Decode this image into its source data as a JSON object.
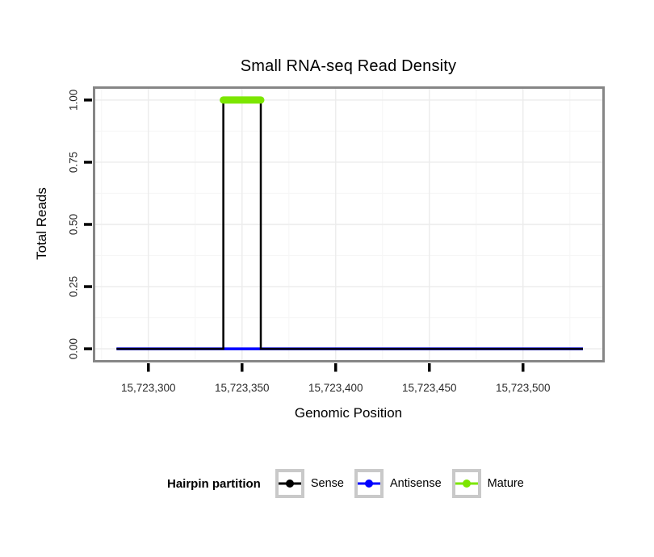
{
  "chart_data": {
    "type": "line",
    "title": "Small RNA-seq Read Density",
    "xlabel": "Genomic Position",
    "ylabel": "Total Reads",
    "x_domain": [
      15723271,
      15723543
    ],
    "y_domain": [
      -0.05,
      1.05
    ],
    "x_ticks": [
      {
        "value": 15723300,
        "label": "15,723,300"
      },
      {
        "value": 15723350,
        "label": "15,723,350"
      },
      {
        "value": 15723400,
        "label": "15,723,400"
      },
      {
        "value": 15723450,
        "label": "15,723,450"
      },
      {
        "value": 15723500,
        "label": "15,723,500"
      }
    ],
    "y_ticks": [
      {
        "value": 0.0,
        "label": "0.00"
      },
      {
        "value": 0.25,
        "label": "0.25"
      },
      {
        "value": 0.5,
        "label": "0.50"
      },
      {
        "value": 0.75,
        "label": "0.75"
      },
      {
        "value": 1.0,
        "label": "1.00"
      }
    ],
    "grid": true,
    "legend_position": "bottom",
    "series": [
      {
        "name": "Antisense",
        "color": "#0000FF",
        "width": 3.5,
        "linecap": "butt",
        "points": [
          [
            15723283,
            0
          ],
          [
            15723532,
            0
          ]
        ]
      },
      {
        "name": "Sense",
        "color": "#000000",
        "width": 2.5,
        "linecap": "butt",
        "points": [
          [
            15723283,
            0
          ],
          [
            15723340,
            0
          ],
          [
            15723340,
            1
          ],
          [
            15723360,
            1
          ],
          [
            15723360,
            0
          ],
          [
            15723532,
            0
          ]
        ]
      },
      {
        "name": "Mature",
        "color": "#7CE600",
        "width": 9,
        "linecap": "round",
        "points": [
          [
            15723340,
            1
          ],
          [
            15723360,
            1
          ]
        ]
      }
    ]
  },
  "legend": {
    "title": "Hairpin partition",
    "items": [
      {
        "label": "Sense",
        "color": "#000000"
      },
      {
        "label": "Antisense",
        "color": "#0000FF"
      },
      {
        "label": "Mature",
        "color": "#7CE600"
      }
    ]
  },
  "colors": {
    "frame": "#868686",
    "grid_major": "#ECECEC",
    "grid_minor": "#F6F6F6",
    "tick_mark": "#000000",
    "tick_label": "#2B2B2B",
    "legend_key_border": "#C9C9C9",
    "panel_background": "#FFFFFF"
  }
}
